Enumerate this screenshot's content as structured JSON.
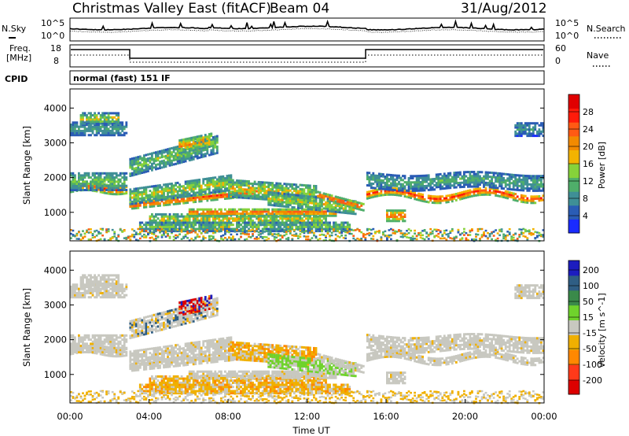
{
  "header": {
    "title": "Christmas Valley East (fitACF)",
    "beam": "Beam 04",
    "date": "31/Aug/2012"
  },
  "noise_panel": {
    "left_label": "N.Sky",
    "right_label": "N.Search",
    "left_ticks": [
      "10^5",
      "10^0"
    ],
    "right_ticks": [
      "10^5",
      "10^0"
    ]
  },
  "freq_panel": {
    "left_label_1": "Freq.",
    "left_label_2": "[MHz]",
    "right_label": "Nave",
    "left_ticks": [
      "18",
      "8"
    ],
    "right_ticks": [
      "60",
      "0"
    ]
  },
  "cpid": {
    "label": "CPID",
    "value": "normal (fast) 151 IF"
  },
  "chart_data": [
    {
      "type": "heatmap",
      "name": "power",
      "ylabel": "Slant Range [km]",
      "ylim": [
        180,
        4550
      ],
      "yticks": [
        1000,
        2000,
        3000,
        4000
      ],
      "colorbar": {
        "label": "Power [dB]",
        "tick_labels": [
          "4",
          "8",
          "12",
          "16",
          "20",
          "24",
          "28"
        ],
        "range": [
          0,
          32
        ],
        "colors": [
          "#1a2bff",
          "#2a5cb5",
          "#3f8f96",
          "#4fae6a",
          "#86d23a",
          "#f3b300",
          "#f28a00",
          "#ff5a14",
          "#ff1b0a",
          "#e00000"
        ]
      }
    },
    {
      "type": "heatmap",
      "name": "velocity",
      "ylabel": "Slant Range [km]",
      "ylim": [
        180,
        4550
      ],
      "yticks": [
        1000,
        2000,
        3000,
        4000
      ],
      "colorbar": {
        "label": "Velocity [m s^-1]",
        "tick_labels": [
          "200",
          "100",
          "50",
          "15",
          "-15",
          "-50",
          "-100",
          "-200"
        ],
        "colors": [
          "#1d1dbf",
          "#2f5e84",
          "#3a8a4a",
          "#6fd32c",
          "#c8c8c0",
          "#f0b000",
          "#ff8800",
          "#ff3a1a",
          "#dd0000"
        ]
      },
      "xlabel": "Time UT",
      "x_tick_labels": [
        "00:00",
        "04:00",
        "08:00",
        "12:00",
        "16:00",
        "20:00",
        "00:00"
      ],
      "xlim_hours": [
        0,
        24
      ]
    }
  ]
}
